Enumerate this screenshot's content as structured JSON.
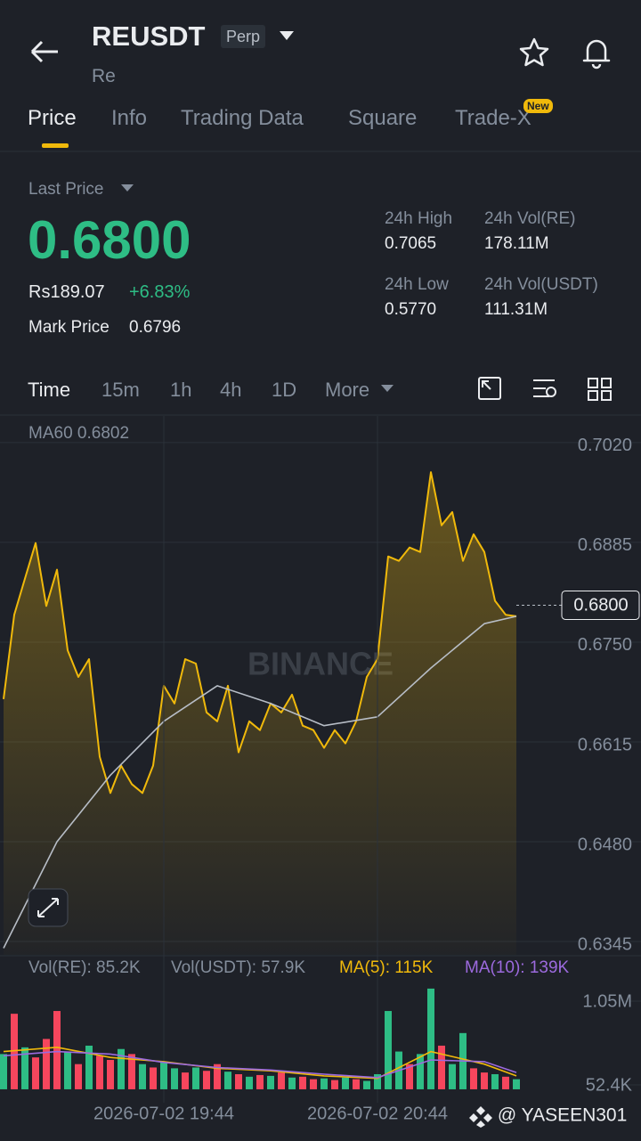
{
  "header": {
    "symbol": "REUSDT",
    "badge": "Perp",
    "subtitle": "Re"
  },
  "tabs": [
    "Price",
    "Info",
    "Trading Data",
    "Square",
    "Trade-X"
  ],
  "tab_badge": "New",
  "price_panel": {
    "last_price_label": "Last Price",
    "last_price": "0.6800",
    "local_price": "Rs189.07",
    "change": "+6.83%",
    "mark_price_label": "Mark Price",
    "mark_price": "0.6796",
    "stats": [
      {
        "label": "24h High",
        "value": "0.7065"
      },
      {
        "label": "24h Low",
        "value": "0.5770"
      },
      {
        "label": "24h Vol(RE)",
        "value": "178.11M"
      },
      {
        "label": "24h Vol(USDT)",
        "value": "111.31M"
      }
    ]
  },
  "toolbar": [
    "Time",
    "15m",
    "1h",
    "4h",
    "1D",
    "More"
  ],
  "watermark": "BINANCE",
  "credit": "@ YASEEN301",
  "chart_data": [
    {
      "type": "line",
      "legend": "MA60 0.6802",
      "xlim": [
        "2026-07-02 18:58",
        "2026-07-02 21:58"
      ],
      "ylim": [
        0.6327,
        0.7056
      ],
      "yticks": [
        {
          "value": 0.702,
          "label": "0.7020"
        },
        {
          "value": 0.6885,
          "label": "0.6885"
        },
        {
          "value": 0.675,
          "label": "0.6750"
        },
        {
          "value": 0.6615,
          "label": "0.6615"
        },
        {
          "value": 0.648,
          "label": "0.6480"
        },
        {
          "value": 0.6345,
          "label": "0.6345"
        }
      ],
      "last_price": {
        "value": 0.68,
        "label": "0.6800"
      },
      "x": [
        "2026-07-02 18:59",
        "2026-07-02 19:02",
        "2026-07-02 19:05",
        "2026-07-02 19:08",
        "2026-07-02 19:11",
        "2026-07-02 19:14",
        "2026-07-02 19:17",
        "2026-07-02 19:20",
        "2026-07-02 19:23",
        "2026-07-02 19:26",
        "2026-07-02 19:29",
        "2026-07-02 19:32",
        "2026-07-02 19:35",
        "2026-07-02 19:38",
        "2026-07-02 19:41",
        "2026-07-02 19:44",
        "2026-07-02 19:47",
        "2026-07-02 19:50",
        "2026-07-02 19:53",
        "2026-07-02 19:56",
        "2026-07-02 19:59",
        "2026-07-02 20:02",
        "2026-07-02 20:05",
        "2026-07-02 20:08",
        "2026-07-02 20:11",
        "2026-07-02 20:14",
        "2026-07-02 20:17",
        "2026-07-02 20:20",
        "2026-07-02 20:23",
        "2026-07-02 20:26",
        "2026-07-02 20:29",
        "2026-07-02 20:32",
        "2026-07-02 20:35",
        "2026-07-02 20:38",
        "2026-07-02 20:41",
        "2026-07-02 20:44",
        "2026-07-02 20:47",
        "2026-07-02 20:50",
        "2026-07-02 20:53",
        "2026-07-02 20:56",
        "2026-07-02 20:59",
        "2026-07-02 21:02",
        "2026-07-02 21:05",
        "2026-07-02 21:08",
        "2026-07-02 21:11",
        "2026-07-02 21:14",
        "2026-07-02 21:17",
        "2026-07-02 21:20",
        "2026-07-02 21:23"
      ],
      "series": [
        {
          "color": "#f0b90b",
          "values": [
            0.6673,
            0.6787,
            0.6836,
            0.6884,
            0.6799,
            0.6848,
            0.6739,
            0.6703,
            0.6727,
            0.6595,
            0.6546,
            0.6583,
            0.6558,
            0.6546,
            0.6583,
            0.6691,
            0.6667,
            0.6727,
            0.6721,
            0.6655,
            0.6643,
            0.6691,
            0.6601,
            0.6643,
            0.6631,
            0.6667,
            0.6655,
            0.6679,
            0.6637,
            0.6631,
            0.6607,
            0.6631,
            0.6613,
            0.6643,
            0.6703,
            0.6727,
            0.6866,
            0.686,
            0.6878,
            0.6872,
            0.698,
            0.6908,
            0.6926,
            0.686,
            0.6896,
            0.6872,
            0.6806,
            0.6787,
            0.6785
          ]
        },
        {
          "color": "#b7bdc6",
          "x": [
            "2026-07-02 18:59",
            "2026-07-02 19:14",
            "2026-07-02 19:29",
            "2026-07-02 19:44",
            "2026-07-02 19:59",
            "2026-07-02 20:14",
            "2026-07-02 20:29",
            "2026-07-02 20:44",
            "2026-07-02 20:59",
            "2026-07-02 21:14",
            "2026-07-02 21:23"
          ],
          "values": [
            0.6336,
            0.648,
            0.657,
            0.6643,
            0.6691,
            0.6667,
            0.6637,
            0.6649,
            0.6715,
            0.6775,
            0.6785
          ]
        }
      ]
    },
    {
      "type": "volume",
      "legend": [
        "Vol(RE): 85.2K",
        "Vol(USDT): 57.9K",
        "MA(5): 115K",
        "MA(10): 139K"
      ],
      "xlim": [
        "2026-07-02 18:58",
        "2026-07-02 21:58"
      ],
      "xticks": [
        "2026-07-02 19:44",
        "2026-07-02 20:44"
      ],
      "ylim": [
        -96000,
        1305000
      ],
      "yticks": [
        {
          "value": 1050000,
          "label": "1.05M"
        },
        {
          "value": 52400,
          "label": "52.4K"
        }
      ],
      "x": [
        "2026-07-02 18:59",
        "2026-07-02 19:02",
        "2026-07-02 19:05",
        "2026-07-02 19:08",
        "2026-07-02 19:11",
        "2026-07-02 19:14",
        "2026-07-02 19:17",
        "2026-07-02 19:20",
        "2026-07-02 19:23",
        "2026-07-02 19:26",
        "2026-07-02 19:29",
        "2026-07-02 19:32",
        "2026-07-02 19:35",
        "2026-07-02 19:38",
        "2026-07-02 19:41",
        "2026-07-02 19:44",
        "2026-07-02 19:47",
        "2026-07-02 19:50",
        "2026-07-02 19:53",
        "2026-07-02 19:56",
        "2026-07-02 19:59",
        "2026-07-02 20:02",
        "2026-07-02 20:05",
        "2026-07-02 20:08",
        "2026-07-02 20:11",
        "2026-07-02 20:14",
        "2026-07-02 20:17",
        "2026-07-02 20:20",
        "2026-07-02 20:23",
        "2026-07-02 20:26",
        "2026-07-02 20:29",
        "2026-07-02 20:32",
        "2026-07-02 20:35",
        "2026-07-02 20:38",
        "2026-07-02 20:41",
        "2026-07-02 20:44",
        "2026-07-02 20:47",
        "2026-07-02 20:50",
        "2026-07-02 20:53",
        "2026-07-02 20:56",
        "2026-07-02 20:59",
        "2026-07-02 21:02",
        "2026-07-02 21:05",
        "2026-07-02 21:08",
        "2026-07-02 21:11",
        "2026-07-02 21:14",
        "2026-07-02 21:17",
        "2026-07-02 21:20",
        "2026-07-02 21:23"
      ],
      "values": [
        420000,
        900000,
        500000,
        380000,
        600000,
        933000,
        450000,
        300000,
        520000,
        400000,
        350000,
        480000,
        420000,
        300000,
        260000,
        320000,
        250000,
        200000,
        260000,
        220000,
        300000,
        210000,
        180000,
        150000,
        170000,
        160000,
        200000,
        140000,
        150000,
        120000,
        130000,
        110000,
        140000,
        120000,
        100000,
        180000,
        933000,
        450000,
        300000,
        420000,
        1200000,
        520000,
        300000,
        670000,
        250000,
        200000,
        180000,
        150000,
        120000
      ],
      "colors": [
        "#2ebd85",
        "#f6465d",
        "#2ebd85",
        "#f6465d",
        "#f6465d",
        "#f6465d",
        "#2ebd85",
        "#f6465d",
        "#2ebd85",
        "#f6465d",
        "#f6465d",
        "#2ebd85",
        "#f6465d",
        "#2ebd85",
        "#f6465d",
        "#2ebd85",
        "#2ebd85",
        "#f6465d",
        "#2ebd85",
        "#f6465d",
        "#f6465d",
        "#2ebd85",
        "#f6465d",
        "#2ebd85",
        "#f6465d",
        "#2ebd85",
        "#f6465d",
        "#2ebd85",
        "#f6465d",
        "#f6465d",
        "#2ebd85",
        "#f6465d",
        "#2ebd85",
        "#f6465d",
        "#2ebd85",
        "#2ebd85",
        "#2ebd85",
        "#2ebd85",
        "#f6465d",
        "#2ebd85",
        "#2ebd85",
        "#f6465d",
        "#2ebd85",
        "#2ebd85",
        "#f6465d",
        "#f6465d",
        "#2ebd85",
        "#f6465d",
        "#2ebd85"
      ],
      "series": [
        {
          "color": "#f0b90b",
          "x": [
            "2026-07-02 18:59",
            "2026-07-02 19:14",
            "2026-07-02 19:29",
            "2026-07-02 19:44",
            "2026-07-02 19:59",
            "2026-07-02 20:14",
            "2026-07-02 20:29",
            "2026-07-02 20:44",
            "2026-07-02 20:59",
            "2026-07-02 21:14",
            "2026-07-02 21:23"
          ],
          "values": [
            450000,
            500000,
            380000,
            330000,
            250000,
            220000,
            160000,
            130000,
            450000,
            300000,
            160000
          ]
        },
        {
          "color": "#9c6ade",
          "x": [
            "2026-07-02 18:59",
            "2026-07-02 19:14",
            "2026-07-02 19:29",
            "2026-07-02 19:44",
            "2026-07-02 19:59",
            "2026-07-02 20:14",
            "2026-07-02 20:29",
            "2026-07-02 20:44",
            "2026-07-02 20:59",
            "2026-07-02 21:14",
            "2026-07-02 21:23"
          ],
          "values": [
            400000,
            450000,
            420000,
            320000,
            260000,
            230000,
            180000,
            140000,
            350000,
            330000,
            200000
          ]
        }
      ]
    }
  ]
}
